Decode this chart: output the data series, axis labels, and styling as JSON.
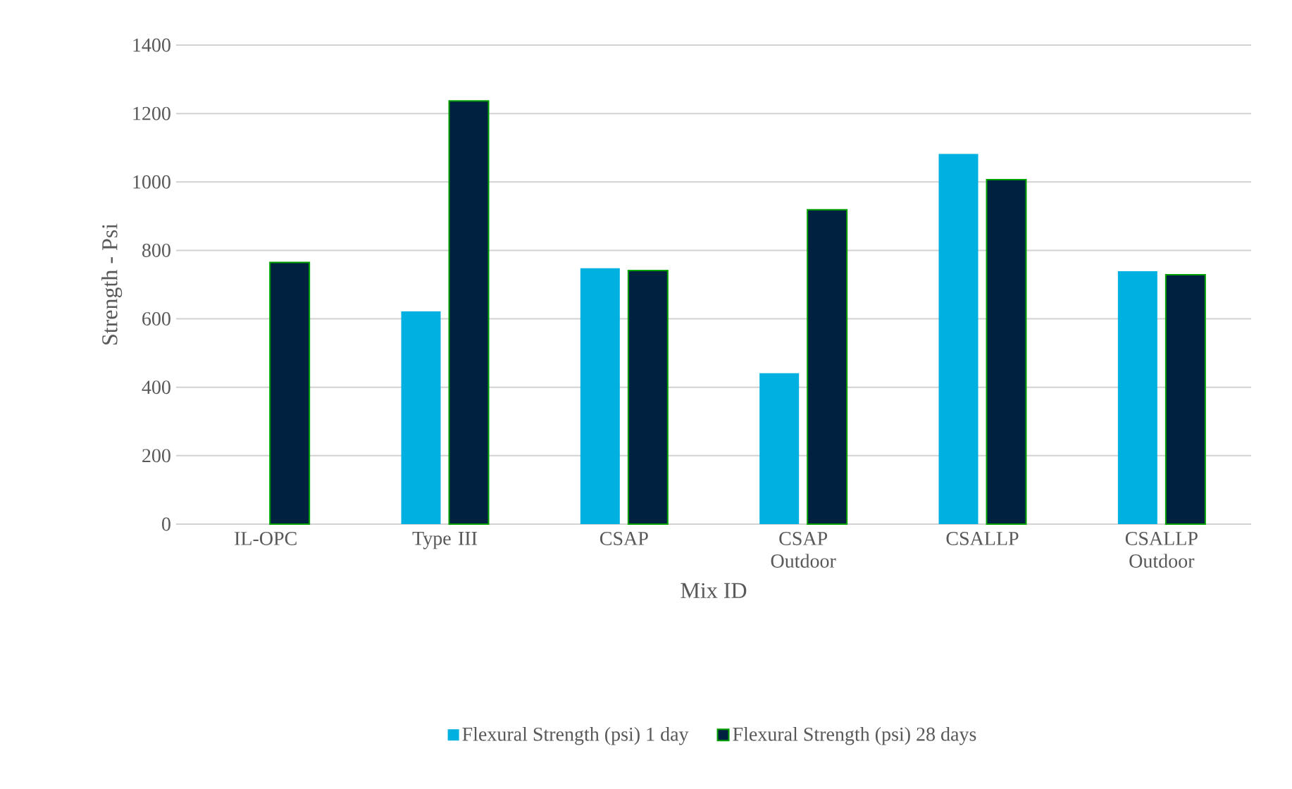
{
  "chart_data": {
    "type": "bar",
    "xlabel": "Mix ID",
    "ylabel": "Strength - Psi",
    "categories": [
      "IL-OPC",
      "Type III",
      "CSAP",
      "CSAP Outdoor",
      "CSALLP",
      "CSALLP Outdoor"
    ],
    "series": [
      {
        "name": "Flexural Strength (psi) 1 day",
        "color": "#00b0e0",
        "values": [
          null,
          622,
          748,
          441,
          1082,
          739
        ]
      },
      {
        "name": "Flexural Strength (psi) 28 days",
        "color": "#002240",
        "values": [
          765,
          1237,
          741,
          919,
          1007,
          729
        ]
      }
    ],
    "ylim": [
      0,
      1400
    ],
    "yticks": [
      0,
      200,
      400,
      600,
      800,
      1000,
      1200,
      1400
    ],
    "grid": "y",
    "legend": "bottom"
  }
}
